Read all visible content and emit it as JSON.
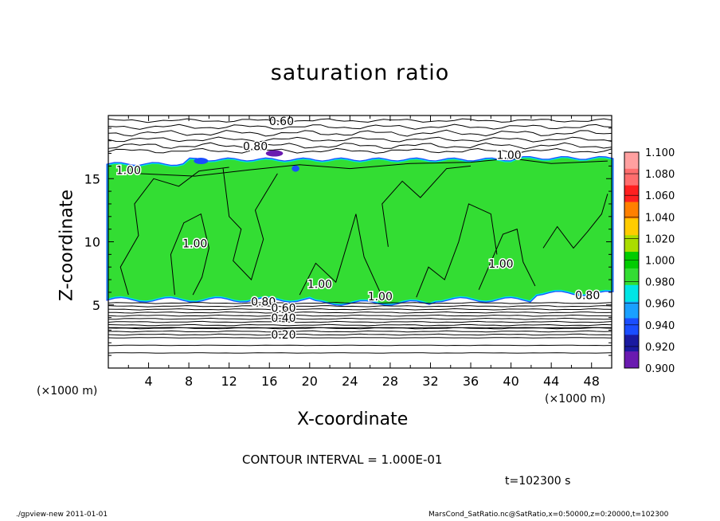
{
  "header": {
    "title": "saturation ratio"
  },
  "axes": {
    "xlabel": "X-coordinate",
    "ylabel": "Z-coordinate",
    "x_unit_left": "(×1000 m)",
    "x_unit_right": "(×1000 m)"
  },
  "footer": {
    "contour_interval": "CONTOUR INTERVAL = 1.000E-01",
    "time": "t=102300 s",
    "left_note": "./gpview-new   2011-01-01",
    "right_note": "MarsCond_SatRatio.nc@SatRatio,x=0:50000,z=0:20000,t=102300"
  },
  "colors": {
    "green": "#00cc00",
    "light_green": "#33dd33",
    "cyan": "#00e5e5",
    "blue": "#1a4dff",
    "purple": "#6a1ab0"
  },
  "chart_data": {
    "type": "heatmap",
    "title": "saturation ratio",
    "xlabel": "X-coordinate",
    "ylabel": "Z-coordinate",
    "x_unit": "×1000 m",
    "z_unit": "×1000 m",
    "xlim": [
      0,
      50
    ],
    "ylim": [
      0,
      20
    ],
    "x_ticks": [
      4,
      8,
      12,
      16,
      20,
      24,
      28,
      32,
      36,
      40,
      44,
      48
    ],
    "y_ticks": [
      5,
      10,
      15
    ],
    "grid": false,
    "contour_interval": 0.1,
    "saturated_layer": {
      "z_bottom": 5.6,
      "z_top": 16.4,
      "value": 1.0
    },
    "contour_labels": [
      {
        "text": "0.60",
        "x": 17.2,
        "z": 19.5
      },
      {
        "text": "0.80",
        "x": 14.6,
        "z": 17.5
      },
      {
        "text": "1.00",
        "x": 2.0,
        "z": 15.6
      },
      {
        "text": "1.00",
        "x": 39.8,
        "z": 16.8
      },
      {
        "text": "1.00",
        "x": 8.6,
        "z": 9.8
      },
      {
        "text": "1.00",
        "x": 21.0,
        "z": 6.6
      },
      {
        "text": "1.00",
        "x": 27.0,
        "z": 5.6
      },
      {
        "text": "1.00",
        "x": 39.0,
        "z": 8.2
      },
      {
        "text": "0.80",
        "x": 15.4,
        "z": 5.2
      },
      {
        "text": "0.60",
        "x": 17.4,
        "z": 4.7
      },
      {
        "text": "0.40",
        "x": 17.4,
        "z": 3.9
      },
      {
        "text": "0.20",
        "x": 17.4,
        "z": 2.6
      },
      {
        "text": "0.80",
        "x": 47.6,
        "z": 5.7
      }
    ],
    "colorbar": {
      "levels": [
        "0.900",
        "0.920",
        "0.940",
        "0.960",
        "0.980",
        "1.000",
        "1.020",
        "1.040",
        "1.060",
        "1.080",
        "1.100"
      ],
      "colors": [
        "#6a1ab0",
        "#1a1aa0",
        "#1a4dff",
        "#1aa0ff",
        "#00e5e5",
        "#33dd33",
        "#00cc00",
        "#aadd00",
        "#ffcc00",
        "#ff8000",
        "#ff2020",
        "#ff6e6e",
        "#ffa0a0"
      ]
    }
  }
}
